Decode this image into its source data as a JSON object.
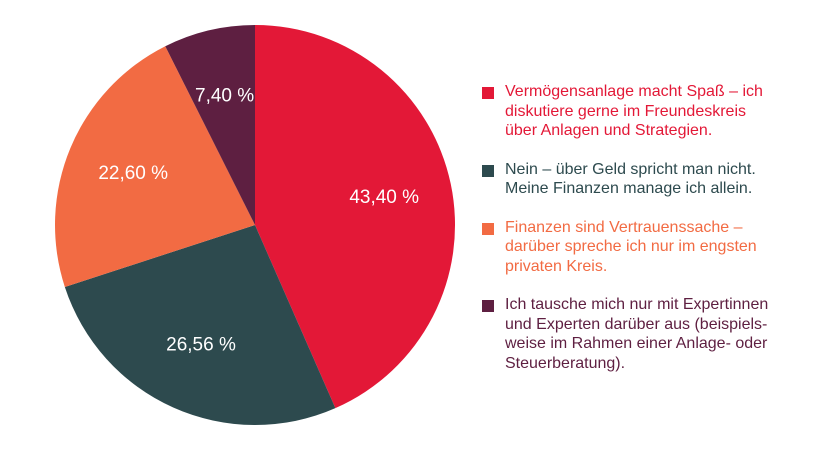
{
  "chart_data": {
    "type": "pie",
    "title": "",
    "slices": [
      {
        "label": "Vermögensanlage macht Spaß – ich\ndiskutiere gerne im Freundeskreis\nüber Anlagen und Strategien.",
        "value": 43.4,
        "value_label": "43,40 %",
        "color": "#e31837"
      },
      {
        "label": "Nein – über Geld spricht man nicht.\nMeine Finanzen manage ich allein.",
        "value": 26.56,
        "value_label": "26,56 %",
        "color": "#2d4a4e"
      },
      {
        "label": "Finanzen sind Vertrauenssache –\ndarüber spreche ich nur im engsten\nprivaten Kreis.",
        "value": 22.6,
        "value_label": "22,60 %",
        "color": "#f26b43"
      },
      {
        "label": "Ich tausche mich nur mit Expertinnen\nund Experten darüber aus (beispiels-\nweise im Rahmen einer Anlage- oder\nSteuerberatung).",
        "value": 7.4,
        "value_label": "7,40 %",
        "color": "#5e1f41"
      }
    ],
    "legend_position": "right"
  }
}
